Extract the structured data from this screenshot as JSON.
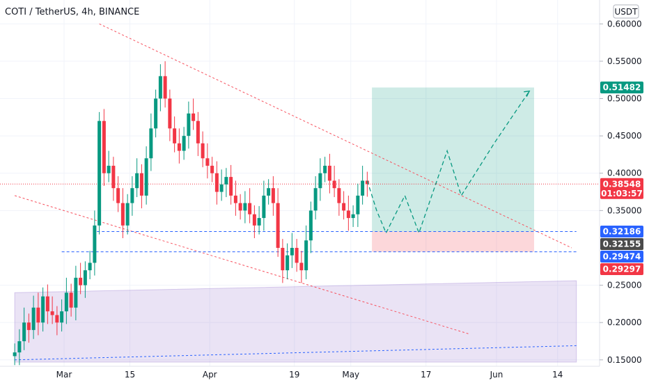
{
  "chart_data": {
    "type": "candlestick",
    "title": "COTI / TetherUS, 4h, BINANCE",
    "currency": "USDT",
    "y_ticks": [
      0.6,
      0.55,
      0.5,
      0.45,
      0.4,
      0.35,
      0.25,
      0.2,
      0.15
    ],
    "y_tick_labels": [
      "0.60000",
      "0.55000",
      "0.50000",
      "0.45000",
      "0.40000",
      "0.35000",
      "0.25000",
      "0.20000",
      "0.15000"
    ],
    "ylim": [
      0.147,
      0.632
    ],
    "x_ticks": [
      {
        "label": "Mar",
        "day": 0
      },
      {
        "label": "15",
        "day": 14
      },
      {
        "label": "Apr",
        "day": 31
      },
      {
        "label": "19",
        "day": 49
      },
      {
        "label": "May",
        "day": 61
      },
      {
        "label": "17",
        "day": 77
      },
      {
        "label": "Jun",
        "day": 92
      },
      {
        "label": "14",
        "day": 105
      }
    ],
    "price_tags": [
      {
        "label": "0.51482",
        "value": 0.51482,
        "color": "#089981"
      },
      {
        "label": "0.38548",
        "sublabel": "01:03:57",
        "value": 0.38548,
        "color": "#f23645"
      },
      {
        "label": "0.32186",
        "value": 0.32186,
        "color": "#2962ff"
      },
      {
        "label": "0.32155",
        "value": 0.32155,
        "color": "#4a4a4a"
      },
      {
        "label": "0.29474",
        "value": 0.29474,
        "color": "#2962ff"
      },
      {
        "label": "0.29297",
        "value": 0.29297,
        "color": "#f23645"
      }
    ],
    "candles": [
      {
        "d": -10.5,
        "c": 0.16
      },
      {
        "d": -9.5,
        "c": 0.175
      },
      {
        "d": -8.5,
        "c": 0.2
      },
      {
        "d": -7.5,
        "c": 0.19
      },
      {
        "d": -6.5,
        "c": 0.22
      },
      {
        "d": -5.5,
        "c": 0.2
      },
      {
        "d": -4.5,
        "c": 0.235
      },
      {
        "d": -3.5,
        "c": 0.215
      },
      {
        "d": -2.5,
        "c": 0.21
      },
      {
        "d": -1.5,
        "c": 0.2
      },
      {
        "d": -0.5,
        "c": 0.215
      },
      {
        "d": 0.5,
        "c": 0.24
      },
      {
        "d": 1.5,
        "c": 0.22
      },
      {
        "d": 2.5,
        "c": 0.26
      },
      {
        "d": 3.5,
        "c": 0.25
      },
      {
        "d": 4.5,
        "c": 0.27
      },
      {
        "d": 5.5,
        "c": 0.28
      },
      {
        "d": 6.5,
        "c": 0.33
      },
      {
        "d": 7.5,
        "c": 0.47
      },
      {
        "d": 8.5,
        "c": 0.4
      },
      {
        "d": 9.5,
        "c": 0.41
      },
      {
        "d": 10.5,
        "c": 0.38
      },
      {
        "d": 11.5,
        "c": 0.36
      },
      {
        "d": 12.5,
        "c": 0.33
      },
      {
        "d": 13.5,
        "c": 0.36
      },
      {
        "d": 14.5,
        "c": 0.38
      },
      {
        "d": 15.5,
        "c": 0.4
      },
      {
        "d": 16.5,
        "c": 0.37
      },
      {
        "d": 17.5,
        "c": 0.42
      },
      {
        "d": 18.5,
        "c": 0.46
      },
      {
        "d": 19.5,
        "c": 0.5
      },
      {
        "d": 20.5,
        "c": 0.53
      },
      {
        "d": 21.5,
        "c": 0.5
      },
      {
        "d": 22.5,
        "c": 0.46
      },
      {
        "d": 23.5,
        "c": 0.44
      },
      {
        "d": 24.5,
        "c": 0.43
      },
      {
        "d": 25.5,
        "c": 0.45
      },
      {
        "d": 26.5,
        "c": 0.48
      },
      {
        "d": 27.5,
        "c": 0.47
      },
      {
        "d": 28.5,
        "c": 0.44
      },
      {
        "d": 29.5,
        "c": 0.42
      },
      {
        "d": 30.5,
        "c": 0.41
      },
      {
        "d": 31.5,
        "c": 0.4
      },
      {
        "d": 32.5,
        "c": 0.375
      },
      {
        "d": 33.5,
        "c": 0.385
      },
      {
        "d": 34.5,
        "c": 0.395
      },
      {
        "d": 35.5,
        "c": 0.37
      },
      {
        "d": 36.5,
        "c": 0.36
      },
      {
        "d": 37.5,
        "c": 0.35
      },
      {
        "d": 38.5,
        "c": 0.36
      },
      {
        "d": 39.5,
        "c": 0.345
      },
      {
        "d": 40.5,
        "c": 0.33
      },
      {
        "d": 41.5,
        "c": 0.34
      },
      {
        "d": 42.5,
        "c": 0.37
      },
      {
        "d": 43.5,
        "c": 0.38
      },
      {
        "d": 44.5,
        "c": 0.36
      },
      {
        "d": 45.5,
        "c": 0.3
      },
      {
        "d": 46.5,
        "c": 0.27
      },
      {
        "d": 47.5,
        "c": 0.29
      },
      {
        "d": 48.5,
        "c": 0.3
      },
      {
        "d": 49.5,
        "c": 0.28
      },
      {
        "d": 50.5,
        "c": 0.27
      },
      {
        "d": 51.5,
        "c": 0.31
      },
      {
        "d": 52.5,
        "c": 0.35
      },
      {
        "d": 53.5,
        "c": 0.38
      },
      {
        "d": 54.5,
        "c": 0.4
      },
      {
        "d": 55.5,
        "c": 0.41
      },
      {
        "d": 56.5,
        "c": 0.39
      },
      {
        "d": 57.5,
        "c": 0.38
      },
      {
        "d": 58.5,
        "c": 0.36
      },
      {
        "d": 59.5,
        "c": 0.35
      },
      {
        "d": 60.5,
        "c": 0.34
      },
      {
        "d": 61.5,
        "c": 0.345
      },
      {
        "d": 62.5,
        "c": 0.37
      },
      {
        "d": 63.5,
        "c": 0.39
      },
      {
        "d": 64.5,
        "c": 0.3855
      }
    ],
    "trend_lines": [
      {
        "from": [
          7.5,
          0.6
        ],
        "to": [
          108,
          0.3
        ],
        "color": "#f7525f"
      },
      {
        "from": [
          -10.5,
          0.37
        ],
        "to": [
          86,
          0.185
        ],
        "color": "#f7525f"
      },
      {
        "from": [
          -10.5,
          0.15
        ],
        "to": [
          109,
          0.169
        ],
        "color": "#2962ff"
      }
    ],
    "levels": [
      {
        "value": 0.32186,
        "from": 7,
        "to": 109
      },
      {
        "value": 0.29474,
        "from": -0.5,
        "to": 109
      }
    ],
    "channel": {
      "top_start": [
        -10.5,
        0.24
      ],
      "top_end": [
        109,
        0.256
      ],
      "bottom": 0.147
    },
    "target_zone": {
      "from": 65.5,
      "to": 100,
      "top": 0.51482,
      "bottom": 0.32186
    },
    "stop_zone": {
      "from": 65.5,
      "to": 100,
      "top": 0.32186,
      "bottom": 0.29474
    },
    "projection": [
      [
        64.5,
        0.39
      ],
      [
        66.5,
        0.35
      ],
      [
        68.5,
        0.32
      ],
      [
        72.5,
        0.37
      ],
      [
        75.5,
        0.32
      ],
      [
        81.5,
        0.43
      ],
      [
        84.5,
        0.37
      ],
      [
        91.5,
        0.44
      ],
      [
        99,
        0.51
      ]
    ],
    "grid": true
  }
}
